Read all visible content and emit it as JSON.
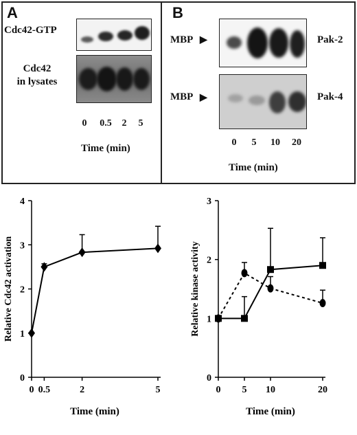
{
  "panel_a": {
    "letter": "A",
    "blot1_label": "Cdc42-GTP",
    "blot2_label_line1": "Cdc42",
    "blot2_label_line2": "in lysates",
    "lane_labels": [
      "0",
      "0.5",
      "2",
      "5"
    ],
    "time_label": "Time (min)"
  },
  "panel_b": {
    "letter": "B",
    "mbp_label_1": "MBP",
    "mbp_label_2": "MBP",
    "blot1_name": "Pak-2",
    "blot2_name": "Pak-4",
    "lane_labels": [
      "0",
      "5",
      "10",
      "20"
    ],
    "time_label": "Time (min)"
  },
  "chart_data": [
    {
      "type": "line",
      "xlabel": "Time (min)",
      "ylabel": "Relative Cdc42 activation",
      "xlim": [
        0,
        5
      ],
      "ylim": [
        0,
        4
      ],
      "x_ticks": [
        "0",
        "0.5",
        "2",
        "5"
      ],
      "y_ticks": [
        "0",
        "1",
        "2",
        "3",
        "4"
      ],
      "series": [
        {
          "marker": "diamond",
          "line": "solid",
          "x": [
            0,
            0.5,
            2,
            5
          ],
          "y": [
            1.0,
            2.5,
            2.83,
            2.92
          ],
          "error": [
            0,
            0.07,
            0.4,
            0.5
          ]
        }
      ]
    },
    {
      "type": "line",
      "xlabel": "Time (min)",
      "ylabel": "Relative kinase activity",
      "xlim": [
        0,
        20
      ],
      "ylim": [
        0,
        3
      ],
      "x_ticks": [
        "0",
        "5",
        "10",
        "20"
      ],
      "y_ticks": [
        "0",
        "1",
        "2",
        "3"
      ],
      "series": [
        {
          "marker": "square",
          "line": "solid",
          "x": [
            0,
            5,
            10,
            20
          ],
          "y": [
            1.0,
            1.0,
            1.83,
            1.9
          ],
          "error": [
            0,
            0.37,
            0.7,
            0.47
          ]
        },
        {
          "marker": "circle",
          "line": "dashed",
          "x": [
            0,
            5,
            10,
            20
          ],
          "y": [
            1.0,
            1.77,
            1.51,
            1.26
          ],
          "error": [
            0,
            0.18,
            0.2,
            0.22
          ]
        }
      ]
    }
  ]
}
